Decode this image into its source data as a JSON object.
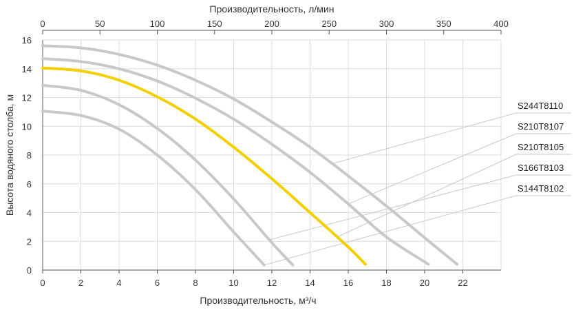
{
  "chart_data": {
    "type": "line",
    "xlabel": "Производительность, м³/ч",
    "x2label": "Производительность, л/мин",
    "ylabel": "Высота водяного столба, м",
    "xlim": [
      0,
      24
    ],
    "ylim": [
      0,
      16
    ],
    "x_ticks": [
      0,
      2,
      4,
      6,
      8,
      10,
      12,
      14,
      16,
      18,
      20,
      22
    ],
    "y_ticks": [
      0,
      2,
      4,
      6,
      8,
      10,
      12,
      14,
      16
    ],
    "x2_ticks": [
      0,
      50,
      100,
      150,
      200,
      250,
      300,
      350,
      400
    ],
    "x2_units_per_x": 16.6667,
    "grid": true,
    "series": [
      {
        "name": "S244T8110",
        "color": "#c8c8c8",
        "x": [
          0,
          2,
          4,
          6,
          8,
          10,
          12,
          14,
          16,
          18,
          20,
          21.7
        ],
        "y": [
          15.6,
          15.45,
          15.0,
          14.25,
          13.2,
          11.9,
          10.3,
          8.55,
          6.55,
          4.45,
          2.25,
          0.4
        ]
      },
      {
        "name": "S210T8107",
        "color": "#c8c8c8",
        "x": [
          0,
          2,
          4,
          6,
          8,
          10,
          12,
          14,
          16,
          18,
          20.2
        ],
        "y": [
          14.7,
          14.5,
          14.0,
          13.15,
          11.95,
          10.5,
          8.75,
          6.8,
          4.6,
          2.3,
          0.4
        ]
      },
      {
        "name": "S210T8105",
        "color": "#f2d000",
        "x": [
          0,
          2,
          4,
          6,
          8,
          10,
          12,
          14,
          16,
          16.9
        ],
        "y": [
          14.05,
          13.85,
          13.2,
          12.05,
          10.5,
          8.55,
          6.35,
          4.0,
          1.6,
          0.4
        ]
      },
      {
        "name": "S166T8103",
        "color": "#c8c8c8",
        "x": [
          0,
          2,
          4,
          6,
          8,
          10,
          12,
          13.1
        ],
        "y": [
          12.85,
          12.5,
          11.5,
          9.85,
          7.65,
          4.95,
          1.9,
          0.35
        ]
      },
      {
        "name": "S144T8102",
        "color": "#c8c8c8",
        "x": [
          0,
          2,
          4,
          6,
          8,
          10,
          11.6
        ],
        "y": [
          11.05,
          10.75,
          9.8,
          8.0,
          5.6,
          2.65,
          0.35
        ]
      }
    ],
    "legend": {
      "placement": "right",
      "entries": [
        "S244T8110",
        "S210T8107",
        "S210T8105",
        "S166T8103",
        "S144T8102"
      ]
    }
  }
}
